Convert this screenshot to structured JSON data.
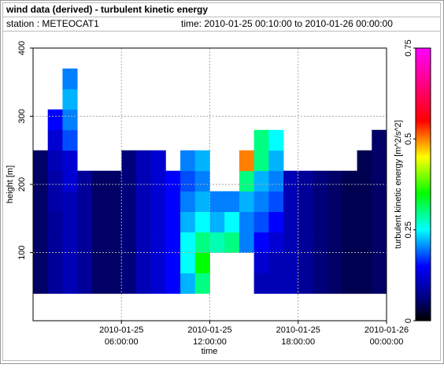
{
  "chart_data": {
    "type": "heatmap",
    "title": "wind data (derived) - turbulent kinetic energy",
    "station": "station : METEOCAT1",
    "time_range": "time: 2010-01-25 00:10:00 to 2010-01-26 00:00:00",
    "x_label": "time",
    "y_label": "height [m]",
    "colorbar_label": "turbulent kinetic energy [m^2/s^2]",
    "xlim": [
      0,
      24
    ],
    "xticks": [
      {
        "value": 6,
        "label": "2010-01-25",
        "sublabel": "06:00:00"
      },
      {
        "value": 12,
        "label": "2010-01-25",
        "sublabel": "12:00:00"
      },
      {
        "value": 18,
        "label": "2010-01-25",
        "sublabel": "18:00:00"
      },
      {
        "value": 24,
        "label": "2010-01-26",
        "sublabel": "00:00:00"
      }
    ],
    "ylim": [
      0,
      400
    ],
    "yticks": [
      100,
      200,
      300,
      400
    ],
    "zlim": [
      0,
      0.75
    ],
    "zticks": [
      0,
      0.25,
      0.5,
      0.75
    ],
    "grid": true,
    "colormap": [
      [
        0,
        "#000000"
      ],
      [
        0.06,
        "#00007a"
      ],
      [
        0.15,
        "#0000ff"
      ],
      [
        0.25,
        "#00ffff"
      ],
      [
        0.35,
        "#00ff00"
      ],
      [
        0.45,
        "#ffff00"
      ],
      [
        0.55,
        "#ff0000"
      ],
      [
        0.75,
        "#ff00ff"
      ]
    ],
    "x_bins": [
      0,
      1,
      2,
      3,
      4,
      5,
      6,
      7,
      8,
      9,
      10,
      11,
      12,
      13,
      14,
      15,
      16,
      17,
      18,
      19,
      20,
      21,
      22,
      23,
      24
    ],
    "y_bins": [
      40,
      70,
      100,
      130,
      160,
      190,
      220,
      250,
      280,
      310,
      340,
      370
    ],
    "values": [
      [
        0.05,
        0.05,
        0.05,
        0.05,
        0.05,
        0.05,
        0.05,
        null,
        null,
        null,
        null
      ],
      [
        0.08,
        0.08,
        0.08,
        0.08,
        0.09,
        0.09,
        0.1,
        0.12,
        0.15,
        null,
        null
      ],
      [
        0.1,
        0.1,
        0.1,
        0.1,
        0.1,
        0.12,
        0.12,
        0.18,
        0.2,
        0.22,
        0.2
      ],
      [
        0.08,
        0.08,
        0.08,
        0.08,
        0.08,
        0.08,
        null,
        null,
        null,
        null,
        null
      ],
      [
        0.05,
        0.05,
        0.05,
        0.05,
        0.05,
        0.05,
        null,
        null,
        null,
        null,
        null
      ],
      [
        0.05,
        0.05,
        0.05,
        0.05,
        0.05,
        0.05,
        null,
        null,
        null,
        null,
        null
      ],
      [
        0.06,
        0.06,
        0.06,
        0.06,
        0.06,
        0.06,
        0.06,
        null,
        null,
        null,
        null
      ],
      [
        0.1,
        0.1,
        0.1,
        0.1,
        0.1,
        0.1,
        0.1,
        null,
        null,
        null,
        null
      ],
      [
        0.12,
        0.12,
        0.12,
        0.12,
        0.12,
        0.12,
        0.12,
        null,
        null,
        null,
        null
      ],
      [
        0.15,
        0.15,
        0.15,
        0.15,
        0.15,
        0.15,
        null,
        null,
        null,
        null,
        null
      ],
      [
        0.22,
        0.25,
        0.25,
        0.22,
        0.2,
        0.18,
        0.2,
        null,
        null,
        null,
        null
      ],
      [
        0.3,
        0.35,
        0.3,
        0.25,
        0.22,
        0.2,
        0.22,
        null,
        null,
        null,
        null
      ],
      [
        null,
        null,
        0.28,
        0.22,
        0.2,
        null,
        null,
        null,
        null,
        null,
        null
      ],
      [
        null,
        null,
        0.3,
        0.25,
        0.2,
        null,
        null,
        null,
        null,
        null,
        null
      ],
      [
        null,
        null,
        0.2,
        0.2,
        0.22,
        0.3,
        0.5,
        null,
        null,
        null,
        null
      ],
      [
        0.1,
        0.12,
        0.15,
        0.18,
        0.2,
        0.22,
        0.3,
        0.3,
        null,
        null,
        null
      ],
      [
        0.1,
        0.1,
        0.12,
        0.15,
        0.18,
        0.2,
        0.22,
        0.25,
        null,
        null,
        null
      ],
      [
        0.1,
        0.1,
        0.1,
        0.1,
        0.1,
        0.1,
        null,
        null,
        null,
        null,
        null
      ],
      [
        0.08,
        0.08,
        0.08,
        0.08,
        0.08,
        0.08,
        null,
        null,
        null,
        null,
        null
      ],
      [
        0.06,
        0.06,
        0.06,
        0.06,
        0.06,
        0.06,
        null,
        null,
        null,
        null,
        null
      ],
      [
        0.05,
        0.05,
        0.05,
        0.05,
        0.05,
        0.05,
        null,
        null,
        null,
        null,
        null
      ],
      [
        0.04,
        0.04,
        0.04,
        0.04,
        0.04,
        0.04,
        null,
        null,
        null,
        null,
        null
      ],
      [
        0.04,
        0.04,
        0.04,
        0.04,
        0.04,
        0.04,
        0.04,
        null,
        null,
        null,
        null
      ],
      [
        0.05,
        0.05,
        0.05,
        0.05,
        0.05,
        0.05,
        0.05,
        0.05,
        null,
        null,
        null
      ]
    ]
  }
}
